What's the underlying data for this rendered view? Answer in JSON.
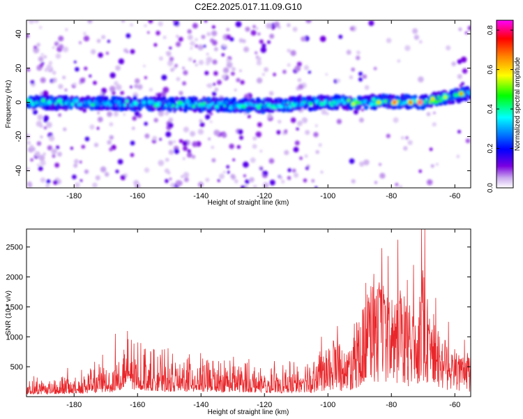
{
  "title": "C2E2.2025.017.11.09.G10",
  "chart_data": [
    {
      "type": "heatmap",
      "xlabel": "Height of straight line (km)",
      "ylabel": "Frequency (Hz)",
      "xlim": [
        -195,
        -55
      ],
      "ylim": [
        -50,
        48
      ],
      "xticks": [
        -180,
        -160,
        -140,
        -120,
        -100,
        -80,
        -60
      ],
      "yticks": [
        -40,
        -20,
        0,
        20,
        40
      ],
      "colorbar": {
        "label": "Normalized spectral amplitude",
        "range": [
          0,
          0.85
        ],
        "ticks": [
          0.0,
          0.2,
          0.4,
          0.6,
          0.8
        ],
        "colors": [
          "#ffffff",
          "#c9a8ee",
          "#7a00e0",
          "#0000ff",
          "#00ffff",
          "#00ff00",
          "#ffff00",
          "#ff8800",
          "#ff0000",
          "#ff00ff"
        ]
      },
      "ridge": {
        "points": [
          [
            -195,
            0
          ],
          [
            -150,
            -1
          ],
          [
            -120,
            -2
          ],
          [
            -100,
            0
          ],
          [
            -90,
            0
          ],
          [
            -80,
            0.5
          ],
          [
            -70,
            0
          ],
          [
            -60,
            4
          ],
          [
            -55,
            5
          ]
        ],
        "half_width_hz": 3.5
      },
      "hotspots": [
        [
          -166,
          0,
          0.32
        ],
        [
          -158,
          0,
          0.35
        ],
        [
          -150,
          -1,
          0.3
        ],
        [
          -132,
          0,
          0.28
        ],
        [
          -98,
          0,
          0.4
        ],
        [
          -92,
          -1,
          0.55
        ],
        [
          -84,
          0,
          0.6
        ],
        [
          -79,
          0,
          0.78
        ],
        [
          -74,
          0,
          0.72
        ],
        [
          -71,
          0,
          0.82
        ],
        [
          -67,
          2,
          0.6
        ],
        [
          -63,
          3,
          0.55
        ],
        [
          -58,
          5,
          0.65
        ]
      ],
      "noise_regions": [
        {
          "x": [
            -195,
            -183
          ],
          "density": 1.0
        },
        {
          "x": [
            -183,
            -150
          ],
          "density": 0.55
        },
        {
          "x": [
            -150,
            -106
          ],
          "density": 0.75
        },
        {
          "x": [
            -106,
            -55
          ],
          "density": 0.22
        }
      ]
    },
    {
      "type": "line",
      "xlabel": "Height of straight line (km)",
      "ylabel": "SNR (10 * v/v)",
      "xlim": [
        -195,
        -55
      ],
      "ylim": [
        0,
        2800
      ],
      "xticks": [
        -180,
        -160,
        -140,
        -120,
        -100,
        -80,
        -60
      ],
      "yticks": [
        500,
        1000,
        1500,
        2000,
        2500
      ],
      "series": [
        {
          "color": "#e8262a",
          "envelope": [
            [
              -195,
              250
            ],
            [
              -180,
              300
            ],
            [
              -168,
              500
            ],
            [
              -164,
              800
            ],
            [
              -150,
              550
            ],
            [
              -130,
              500
            ],
            [
              -115,
              400
            ],
            [
              -106,
              500
            ],
            [
              -102,
              800
            ],
            [
              -97,
              1050
            ],
            [
              -94,
              700
            ],
            [
              -92,
              1200
            ],
            [
              -89,
              1500
            ],
            [
              -87,
              1900
            ],
            [
              -85,
              2100
            ],
            [
              -83,
              1900
            ],
            [
              -80,
              1600
            ],
            [
              -77,
              1900
            ],
            [
              -75,
              1500
            ],
            [
              -72,
              1700
            ],
            [
              -70,
              2200
            ],
            [
              -68,
              1700
            ],
            [
              -65,
              1100
            ],
            [
              -61,
              900
            ],
            [
              -58,
              700
            ],
            [
              -55,
              750
            ]
          ],
          "peaks": [
            [
              -182,
              480
            ],
            [
              -171,
              700
            ],
            [
              -167,
              1050
            ],
            [
              -162,
              950
            ],
            [
              -158,
              700
            ],
            [
              -144,
              650
            ],
            [
              -102,
              1000
            ],
            [
              -97,
              1180
            ],
            [
              -88,
              1900
            ],
            [
              -85.5,
              2050
            ],
            [
              -83,
              2480
            ],
            [
              -81,
              2350
            ],
            [
              -78,
              2620
            ],
            [
              -75,
              1950
            ],
            [
              -73,
              2200
            ],
            [
              -70.5,
              2800
            ],
            [
              -69.5,
              2800
            ],
            [
              -66,
              1650
            ],
            [
              -62,
              1250
            ],
            [
              -57,
              950
            ]
          ]
        }
      ]
    }
  ]
}
